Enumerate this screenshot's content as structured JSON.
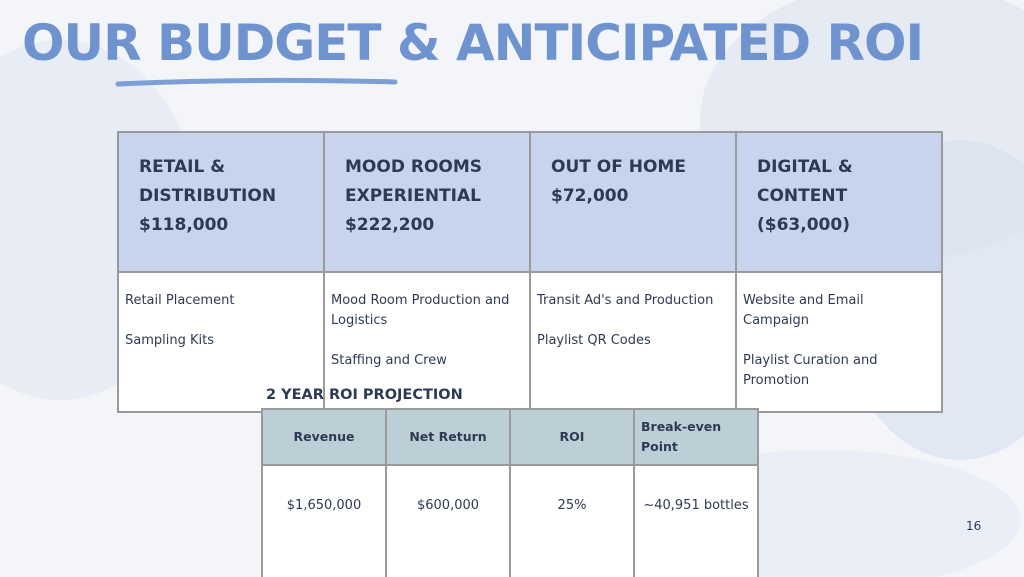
{
  "title": "OUR BUDGET & ANTICIPATED ROI",
  "budget_table": {
    "headers": [
      {
        "name": "RETAIL & DISTRIBUTION",
        "amount": "$118,000"
      },
      {
        "name": "MOOD ROOMS EXPERIENTIAL",
        "amount": "$222,200"
      },
      {
        "name": "OUT OF HOME",
        "amount": "$72,000"
      },
      {
        "name": "DIGITAL & CONTENT",
        "amount": "($63,000)"
      }
    ],
    "items": [
      [
        "Retail Placement",
        "Sampling Kits"
      ],
      [
        "Mood Room Production and Logistics",
        "Staffing and Crew"
      ],
      [
        "Transit Ad's and Production",
        "Playlist QR Codes"
      ],
      [
        "Website and Email Campaign",
        "Playlist Curation and Promotion"
      ]
    ]
  },
  "roi_projection": {
    "label": "2 YEAR ROI PROJECTION",
    "headers": [
      "Revenue",
      "Net Return",
      "ROI",
      "Break-even Point"
    ],
    "values": [
      "$1,650,000",
      "$600,000",
      "25%",
      "~40,951 bottles"
    ]
  },
  "page_number": "16"
}
